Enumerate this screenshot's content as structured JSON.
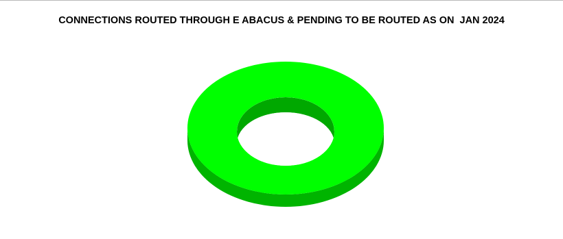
{
  "chart_data": {
    "type": "pie",
    "style": "3d-donut",
    "title": "CONNECTIONS ROUTED THROUGH E ABACUS & PENDING TO BE ROUTED AS ON  JAN 2024",
    "slices": [
      {
        "value": 100,
        "color": "#00ff00"
      }
    ],
    "colors": {
      "top_face": "#00ff00",
      "side_face": "#00b400",
      "inner_wall": "#00a800",
      "hole": "#ffffff"
    },
    "legend": "none",
    "data_labels": "none"
  }
}
